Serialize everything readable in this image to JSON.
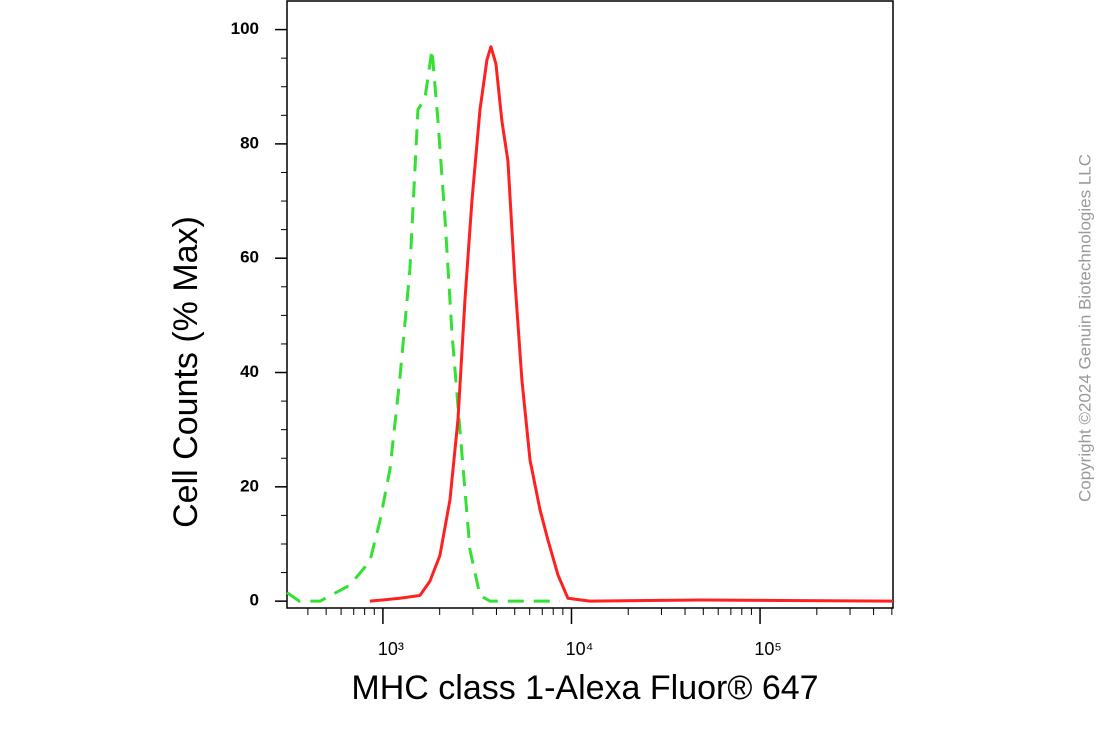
{
  "chart_data": {
    "type": "line",
    "xlabel": "MHC class 1-Alexa Fluor® 647",
    "ylabel": "Cell Counts (% Max)",
    "watermark": "Copyright ©2024 Genuin Biotechnologies LLC",
    "x_scale": "log",
    "xlim": [
      310,
      507000
    ],
    "ylim": [
      -1.2,
      105
    ],
    "xticks": [
      {
        "value": 1000,
        "label": "10³"
      },
      {
        "value": 10000,
        "label": "10⁴"
      },
      {
        "value": 100000,
        "label": "10⁵"
      }
    ],
    "yticks": [
      0,
      20,
      40,
      60,
      80,
      100
    ],
    "minor_ticks": true,
    "series": [
      {
        "color": "#33e033",
        "dashed": true,
        "x": [
          310,
          360,
          464,
          668,
          853,
          964,
          1089,
          1230,
          1390,
          1534,
          1671,
          1820,
          1959,
          2133,
          2323,
          2560,
          2894,
          3272,
          3700,
          8690
        ],
        "values": [
          1.5,
          0,
          0,
          2.8,
          7,
          14,
          23,
          39,
          58,
          86,
          88,
          96.5,
          84,
          67,
          47,
          30,
          9,
          1,
          0,
          0
        ]
      },
      {
        "color": "#ff2020",
        "dashed": false,
        "x": [
          853,
          1230,
          1571,
          1776,
          2006,
          2267,
          2500,
          2723,
          2965,
          3272,
          3562,
          3740,
          3975,
          4276,
          4603,
          5012,
          5459,
          6026,
          6808,
          7500,
          8475,
          9575,
          12530,
          48080,
          507000
        ],
        "values": [
          0,
          0.5,
          1,
          3.5,
          8,
          17.7,
          31.7,
          52.7,
          70,
          86,
          94.7,
          97,
          94,
          84,
          77,
          56,
          38.7,
          24.7,
          16,
          10.7,
          4.6,
          0.5,
          0,
          0.2,
          0
        ]
      }
    ]
  }
}
